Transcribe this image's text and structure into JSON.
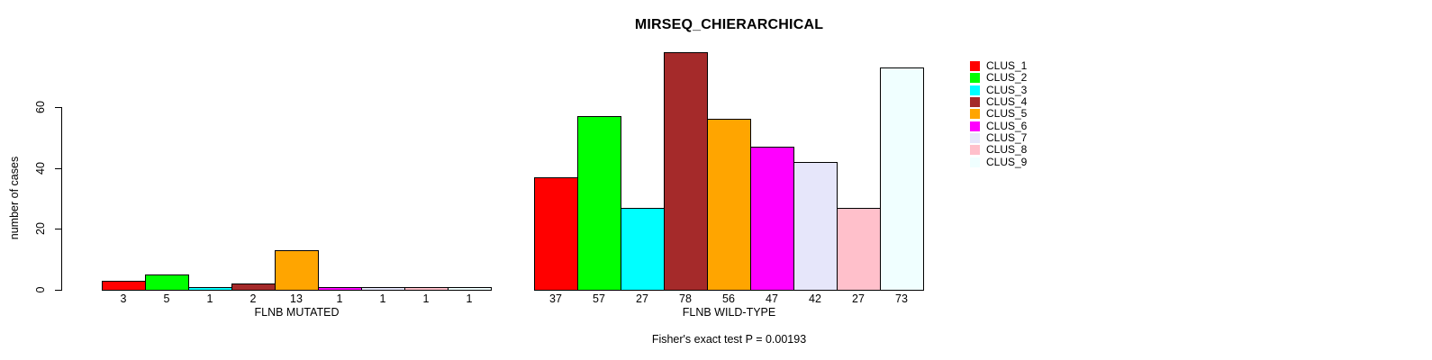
{
  "title": "MIRSEQ_CHIERARCHICAL",
  "y_axis_label": "number of cases",
  "footer_note": "Fisher's exact test P = 0.00193",
  "legend": {
    "position": "right",
    "items": [
      {
        "label": "CLUS_1",
        "color": "#FF0000"
      },
      {
        "label": "CLUS_2",
        "color": "#00FF00"
      },
      {
        "label": "CLUS_3",
        "color": "#00FFFF"
      },
      {
        "label": "CLUS_4",
        "color": "#A52A2A"
      },
      {
        "label": "CLUS_5",
        "color": "#FFA500"
      },
      {
        "label": "CLUS_6",
        "color": "#FF00FF"
      },
      {
        "label": "CLUS_7",
        "color": "#E6E6FA"
      },
      {
        "label": "CLUS_8",
        "color": "#FFC0CB"
      },
      {
        "label": "CLUS_9",
        "color": "#F0FFFF"
      }
    ]
  },
  "chart_data": {
    "type": "bar",
    "title": "MIRSEQ_CHIERARCHICAL",
    "ylabel": "number of cases",
    "yticks": [
      0,
      20,
      40,
      60
    ],
    "ylim": [
      0,
      78
    ],
    "grid": false,
    "legend_position": "right",
    "clusters": [
      "CLUS_1",
      "CLUS_2",
      "CLUS_3",
      "CLUS_4",
      "CLUS_5",
      "CLUS_6",
      "CLUS_7",
      "CLUS_8",
      "CLUS_9"
    ],
    "colors": [
      "#FF0000",
      "#00FF00",
      "#00FFFF",
      "#A52A2A",
      "#FFA500",
      "#FF00FF",
      "#E6E6FA",
      "#FFC0CB",
      "#F0FFFF"
    ],
    "groups": [
      {
        "label": "FLNB MUTATED",
        "values": [
          3,
          5,
          1,
          2,
          13,
          1,
          1,
          1,
          1
        ]
      },
      {
        "label": "FLNB WILD-TYPE",
        "values": [
          37,
          57,
          27,
          78,
          56,
          47,
          42,
          27,
          73
        ]
      }
    ],
    "bar_value_labels_shown": true,
    "annotation": "Fisher's exact test P = 0.00193"
  }
}
